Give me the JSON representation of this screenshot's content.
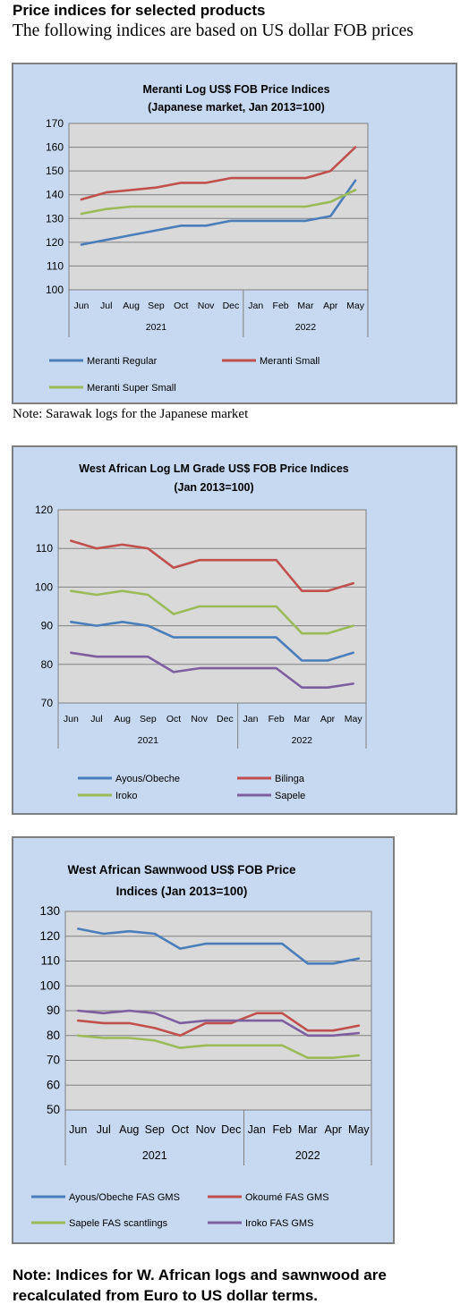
{
  "header": {
    "title": "Price indices for selected products",
    "subtitle": "The following indices are based on US dollar FOB prices"
  },
  "notes": {
    "chart1_note": "Note: Sarawak logs for the Japanese market",
    "bottom_note": "Note: Indices for W. African logs and sawnwood are recalculated from Euro to US dollar terms."
  },
  "chart_data": [
    {
      "type": "line",
      "title_lines": [
        "Meranti Log US$ FOB Price Indices",
        "(Japanese market, Jan 2013=100)"
      ],
      "categories": [
        "Jun",
        "Jul",
        "Aug",
        "Sep",
        "Oct",
        "Nov",
        "Dec",
        "Jan",
        "Feb",
        "Mar",
        "Apr",
        "May"
      ],
      "year_groups": [
        {
          "label": "2021",
          "count": 7
        },
        {
          "label": "2022",
          "count": 5
        }
      ],
      "ylim": [
        100,
        170
      ],
      "yticks": [
        100,
        110,
        120,
        130,
        140,
        150,
        160,
        170
      ],
      "grid": true,
      "legend_position": "bottom",
      "series": [
        {
          "name": "Meranti Regular",
          "color": "#4a7ebb",
          "values": [
            119,
            121,
            123,
            125,
            127,
            127,
            129,
            129,
            129,
            129,
            131,
            146
          ]
        },
        {
          "name": "Meranti Small",
          "color": "#c0504d",
          "values": [
            138,
            141,
            142,
            143,
            145,
            145,
            147,
            147,
            147,
            147,
            150,
            160
          ]
        },
        {
          "name": "Meranti Super Small",
          "color": "#9bbb59",
          "values": [
            132,
            134,
            135,
            135,
            135,
            135,
            135,
            135,
            135,
            135,
            137,
            142
          ]
        }
      ]
    },
    {
      "type": "line",
      "title_lines": [
        "West African Log LM Grade US$ FOB Price Indices",
        "(Jan 2013=100)"
      ],
      "categories": [
        "Jun",
        "Jul",
        "Aug",
        "Sep",
        "Oct",
        "Nov",
        "Dec",
        "Jan",
        "Feb",
        "Mar",
        "Apr",
        "May"
      ],
      "year_groups": [
        {
          "label": "2021",
          "count": 7
        },
        {
          "label": "2022",
          "count": 5
        }
      ],
      "ylim": [
        70,
        120
      ],
      "yticks": [
        70,
        80,
        90,
        100,
        110,
        120
      ],
      "grid": true,
      "legend_position": "bottom",
      "series": [
        {
          "name": "Ayous/Obeche",
          "color": "#4a7ebb",
          "values": [
            91,
            90,
            91,
            90,
            87,
            87,
            87,
            87,
            87,
            81,
            81,
            83
          ]
        },
        {
          "name": "Bilinga",
          "color": "#c0504d",
          "values": [
            112,
            110,
            111,
            110,
            105,
            107,
            107,
            107,
            107,
            99,
            99,
            101
          ]
        },
        {
          "name": "Iroko",
          "color": "#9bbb59",
          "values": [
            99,
            98,
            99,
            98,
            93,
            95,
            95,
            95,
            95,
            88,
            88,
            90
          ]
        },
        {
          "name": "Sapele",
          "color": "#7d5fa0",
          "values": [
            83,
            82,
            82,
            82,
            78,
            79,
            79,
            79,
            79,
            74,
            74,
            75
          ]
        }
      ]
    },
    {
      "type": "line",
      "title_lines": [
        "West African Sawnwood US$ FOB Price",
        "Indices (Jan 2013=100)"
      ],
      "categories": [
        "Jun",
        "Jul",
        "Aug",
        "Sep",
        "Oct",
        "Nov",
        "Dec",
        "Jan",
        "Feb",
        "Mar",
        "Apr",
        "May"
      ],
      "year_groups": [
        {
          "label": "2021",
          "count": 7
        },
        {
          "label": "2022",
          "count": 5
        }
      ],
      "ylim": [
        50,
        130
      ],
      "yticks": [
        50,
        60,
        70,
        80,
        90,
        100,
        110,
        120,
        130
      ],
      "grid": true,
      "legend_position": "bottom",
      "series": [
        {
          "name": "Ayous/Obeche FAS GMS",
          "color": "#4a7ebb",
          "values": [
            123,
            121,
            122,
            121,
            115,
            117,
            117,
            117,
            117,
            109,
            109,
            111
          ]
        },
        {
          "name": "Okoumé  FAS GMS",
          "color": "#c0504d",
          "values": [
            86,
            85,
            85,
            83,
            80,
            85,
            85,
            89,
            89,
            82,
            82,
            84
          ]
        },
        {
          "name": "Sapele FAS scantlings",
          "color": "#9bbb59",
          "values": [
            80,
            79,
            79,
            78,
            75,
            76,
            76,
            76,
            76,
            71,
            71,
            72
          ]
        },
        {
          "name": "Iroko FAS GMS",
          "color": "#7d5fa0",
          "values": [
            90,
            89,
            90,
            89,
            85,
            86,
            86,
            86,
            86,
            80,
            80,
            81
          ]
        }
      ]
    }
  ]
}
